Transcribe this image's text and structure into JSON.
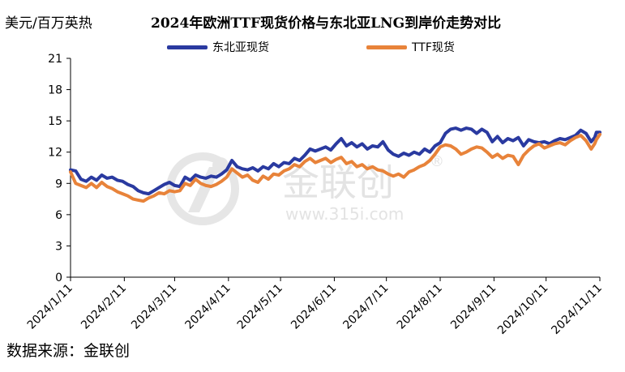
{
  "header": {
    "unit_label": "美元/百万英热",
    "title": "2024年欧洲TTF现货价格与东北亚LNG到岸价走势对比"
  },
  "source": "数据来源：金联创",
  "watermark": {
    "brand": "金联创",
    "url": "www.315i.com",
    "registered": "®"
  },
  "colors": {
    "series_northeast_asia": "#2a3aa0",
    "series_ttf": "#e8833a",
    "axis": "#000000",
    "watermark": "#e3e3e3"
  },
  "chart_data": {
    "type": "line",
    "title": "2024年欧洲TTF现货价格与东北亚LNG到岸价走势对比",
    "ylabel": "美元/百万英热",
    "xlabel": "",
    "ylim": [
      0,
      21
    ],
    "yticks": [
      0,
      3,
      6,
      9,
      12,
      15,
      18,
      21
    ],
    "xlim": [
      "2024-01-11",
      "2024-11-11"
    ],
    "xticks": [
      "2024/1/11",
      "2024/2/11",
      "2024/3/11",
      "2024/4/11",
      "2024/5/11",
      "2024/6/11",
      "2024/7/11",
      "2024/8/11",
      "2024/9/11",
      "2024/10/11",
      "2024/11/11"
    ],
    "grid": false,
    "legend_position": "top-center",
    "series": [
      {
        "name": "东北亚现货",
        "color": "#2a3aa0",
        "points": [
          [
            "2024-01-11",
            10.3
          ],
          [
            "2024-01-14",
            10.2
          ],
          [
            "2024-01-17",
            9.4
          ],
          [
            "2024-01-20",
            9.2
          ],
          [
            "2024-01-23",
            9.6
          ],
          [
            "2024-01-26",
            9.3
          ],
          [
            "2024-01-29",
            9.8
          ],
          [
            "2024-02-01",
            9.5
          ],
          [
            "2024-02-04",
            9.6
          ],
          [
            "2024-02-07",
            9.3
          ],
          [
            "2024-02-10",
            9.2
          ],
          [
            "2024-02-13",
            8.9
          ],
          [
            "2024-02-16",
            8.7
          ],
          [
            "2024-02-19",
            8.3
          ],
          [
            "2024-02-22",
            8.1
          ],
          [
            "2024-02-25",
            8.0
          ],
          [
            "2024-02-28",
            8.3
          ],
          [
            "2024-03-02",
            8.6
          ],
          [
            "2024-03-05",
            8.9
          ],
          [
            "2024-03-08",
            9.1
          ],
          [
            "2024-03-11",
            8.8
          ],
          [
            "2024-03-14",
            8.7
          ],
          [
            "2024-03-17",
            9.6
          ],
          [
            "2024-03-20",
            9.3
          ],
          [
            "2024-03-23",
            9.8
          ],
          [
            "2024-03-26",
            9.6
          ],
          [
            "2024-03-29",
            9.5
          ],
          [
            "2024-04-01",
            9.7
          ],
          [
            "2024-04-04",
            9.6
          ],
          [
            "2024-04-07",
            9.9
          ],
          [
            "2024-04-10",
            10.3
          ],
          [
            "2024-04-13",
            11.2
          ],
          [
            "2024-04-16",
            10.6
          ],
          [
            "2024-04-19",
            10.4
          ],
          [
            "2024-04-22",
            10.3
          ],
          [
            "2024-04-25",
            10.5
          ],
          [
            "2024-04-28",
            10.2
          ],
          [
            "2024-05-01",
            10.6
          ],
          [
            "2024-05-04",
            10.4
          ],
          [
            "2024-05-07",
            10.9
          ],
          [
            "2024-05-10",
            10.6
          ],
          [
            "2024-05-13",
            11.0
          ],
          [
            "2024-05-16",
            10.9
          ],
          [
            "2024-05-19",
            11.4
          ],
          [
            "2024-05-22",
            11.2
          ],
          [
            "2024-05-25",
            11.7
          ],
          [
            "2024-05-28",
            12.3
          ],
          [
            "2024-05-31",
            12.1
          ],
          [
            "2024-06-03",
            12.3
          ],
          [
            "2024-06-06",
            12.5
          ],
          [
            "2024-06-09",
            12.2
          ],
          [
            "2024-06-12",
            12.8
          ],
          [
            "2024-06-15",
            13.3
          ],
          [
            "2024-06-18",
            12.6
          ],
          [
            "2024-06-21",
            12.9
          ],
          [
            "2024-06-24",
            12.5
          ],
          [
            "2024-06-27",
            12.8
          ],
          [
            "2024-06-30",
            12.3
          ],
          [
            "2024-07-03",
            12.6
          ],
          [
            "2024-07-06",
            12.5
          ],
          [
            "2024-07-09",
            13.0
          ],
          [
            "2024-07-12",
            12.2
          ],
          [
            "2024-07-15",
            11.8
          ],
          [
            "2024-07-18",
            11.6
          ],
          [
            "2024-07-21",
            11.9
          ],
          [
            "2024-07-24",
            11.7
          ],
          [
            "2024-07-27",
            12.0
          ],
          [
            "2024-07-30",
            11.8
          ],
          [
            "2024-08-02",
            12.3
          ],
          [
            "2024-08-05",
            12.0
          ],
          [
            "2024-08-08",
            12.6
          ],
          [
            "2024-08-11",
            12.9
          ],
          [
            "2024-08-14",
            13.8
          ],
          [
            "2024-08-17",
            14.2
          ],
          [
            "2024-08-20",
            14.3
          ],
          [
            "2024-08-23",
            14.1
          ],
          [
            "2024-08-26",
            14.3
          ],
          [
            "2024-08-29",
            14.2
          ],
          [
            "2024-09-01",
            13.8
          ],
          [
            "2024-09-04",
            14.2
          ],
          [
            "2024-09-07",
            13.9
          ],
          [
            "2024-09-10",
            13.0
          ],
          [
            "2024-09-13",
            13.5
          ],
          [
            "2024-09-16",
            12.9
          ],
          [
            "2024-09-19",
            13.3
          ],
          [
            "2024-09-22",
            13.1
          ],
          [
            "2024-09-25",
            13.4
          ],
          [
            "2024-09-28",
            12.6
          ],
          [
            "2024-10-01",
            13.2
          ],
          [
            "2024-10-04",
            13.0
          ],
          [
            "2024-10-07",
            12.9
          ],
          [
            "2024-10-10",
            13.0
          ],
          [
            "2024-10-13",
            12.8
          ],
          [
            "2024-10-16",
            13.1
          ],
          [
            "2024-10-19",
            13.3
          ],
          [
            "2024-10-22",
            13.2
          ],
          [
            "2024-10-25",
            13.4
          ],
          [
            "2024-10-28",
            13.6
          ],
          [
            "2024-10-31",
            14.1
          ],
          [
            "2024-11-03",
            13.8
          ],
          [
            "2024-11-06",
            13.0
          ],
          [
            "2024-11-08",
            13.4
          ],
          [
            "2024-11-09",
            13.9
          ],
          [
            "2024-11-11",
            13.9
          ]
        ]
      },
      {
        "name": "TTF现货",
        "color": "#e8833a",
        "points": [
          [
            "2024-01-11",
            10.1
          ],
          [
            "2024-01-14",
            9.0
          ],
          [
            "2024-01-17",
            8.8
          ],
          [
            "2024-01-20",
            8.6
          ],
          [
            "2024-01-23",
            9.0
          ],
          [
            "2024-01-26",
            8.6
          ],
          [
            "2024-01-29",
            9.1
          ],
          [
            "2024-02-01",
            8.7
          ],
          [
            "2024-02-04",
            8.5
          ],
          [
            "2024-02-07",
            8.2
          ],
          [
            "2024-02-10",
            8.0
          ],
          [
            "2024-02-13",
            7.8
          ],
          [
            "2024-02-16",
            7.5
          ],
          [
            "2024-02-19",
            7.4
          ],
          [
            "2024-02-22",
            7.3
          ],
          [
            "2024-02-25",
            7.6
          ],
          [
            "2024-02-28",
            7.8
          ],
          [
            "2024-03-02",
            8.1
          ],
          [
            "2024-03-05",
            8.0
          ],
          [
            "2024-03-08",
            8.3
          ],
          [
            "2024-03-11",
            8.2
          ],
          [
            "2024-03-14",
            8.3
          ],
          [
            "2024-03-17",
            9.0
          ],
          [
            "2024-03-20",
            8.8
          ],
          [
            "2024-03-23",
            9.4
          ],
          [
            "2024-03-26",
            9.0
          ],
          [
            "2024-03-29",
            8.8
          ],
          [
            "2024-04-01",
            8.7
          ],
          [
            "2024-04-04",
            8.9
          ],
          [
            "2024-04-07",
            9.2
          ],
          [
            "2024-04-10",
            9.6
          ],
          [
            "2024-04-13",
            10.4
          ],
          [
            "2024-04-16",
            10.0
          ],
          [
            "2024-04-19",
            9.6
          ],
          [
            "2024-04-22",
            9.8
          ],
          [
            "2024-04-25",
            9.3
          ],
          [
            "2024-04-28",
            9.1
          ],
          [
            "2024-05-01",
            9.7
          ],
          [
            "2024-05-04",
            9.4
          ],
          [
            "2024-05-07",
            9.9
          ],
          [
            "2024-05-10",
            9.8
          ],
          [
            "2024-05-13",
            10.2
          ],
          [
            "2024-05-16",
            10.4
          ],
          [
            "2024-05-19",
            10.8
          ],
          [
            "2024-05-22",
            10.6
          ],
          [
            "2024-05-25",
            11.1
          ],
          [
            "2024-05-28",
            11.4
          ],
          [
            "2024-05-31",
            11.0
          ],
          [
            "2024-06-03",
            11.2
          ],
          [
            "2024-06-06",
            11.4
          ],
          [
            "2024-06-09",
            11.0
          ],
          [
            "2024-06-12",
            11.3
          ],
          [
            "2024-06-15",
            11.5
          ],
          [
            "2024-06-18",
            10.9
          ],
          [
            "2024-06-21",
            11.1
          ],
          [
            "2024-06-24",
            10.6
          ],
          [
            "2024-06-27",
            10.8
          ],
          [
            "2024-06-30",
            10.4
          ],
          [
            "2024-07-03",
            10.6
          ],
          [
            "2024-07-06",
            10.3
          ],
          [
            "2024-07-09",
            10.2
          ],
          [
            "2024-07-12",
            9.9
          ],
          [
            "2024-07-15",
            9.7
          ],
          [
            "2024-07-18",
            9.9
          ],
          [
            "2024-07-21",
            9.6
          ],
          [
            "2024-07-24",
            10.1
          ],
          [
            "2024-07-27",
            10.3
          ],
          [
            "2024-07-30",
            10.6
          ],
          [
            "2024-08-02",
            10.8
          ],
          [
            "2024-08-05",
            11.2
          ],
          [
            "2024-08-08",
            11.8
          ],
          [
            "2024-08-11",
            12.5
          ],
          [
            "2024-08-14",
            12.7
          ],
          [
            "2024-08-17",
            12.6
          ],
          [
            "2024-08-20",
            12.3
          ],
          [
            "2024-08-23",
            11.8
          ],
          [
            "2024-08-26",
            12.0
          ],
          [
            "2024-08-29",
            12.3
          ],
          [
            "2024-09-01",
            12.5
          ],
          [
            "2024-09-04",
            12.4
          ],
          [
            "2024-09-07",
            12.0
          ],
          [
            "2024-09-10",
            11.5
          ],
          [
            "2024-09-13",
            11.8
          ],
          [
            "2024-09-16",
            11.4
          ],
          [
            "2024-09-19",
            11.7
          ],
          [
            "2024-09-22",
            11.6
          ],
          [
            "2024-09-25",
            10.8
          ],
          [
            "2024-09-28",
            11.7
          ],
          [
            "2024-10-01",
            12.2
          ],
          [
            "2024-10-04",
            12.6
          ],
          [
            "2024-10-07",
            12.8
          ],
          [
            "2024-10-10",
            12.4
          ],
          [
            "2024-10-13",
            12.6
          ],
          [
            "2024-10-16",
            12.8
          ],
          [
            "2024-10-19",
            12.9
          ],
          [
            "2024-10-22",
            12.7
          ],
          [
            "2024-10-25",
            13.1
          ],
          [
            "2024-10-28",
            13.4
          ],
          [
            "2024-10-31",
            13.6
          ],
          [
            "2024-11-03",
            13.1
          ],
          [
            "2024-11-06",
            12.3
          ],
          [
            "2024-11-08",
            12.8
          ],
          [
            "2024-11-09",
            13.2
          ],
          [
            "2024-11-11",
            13.7
          ]
        ]
      }
    ]
  }
}
